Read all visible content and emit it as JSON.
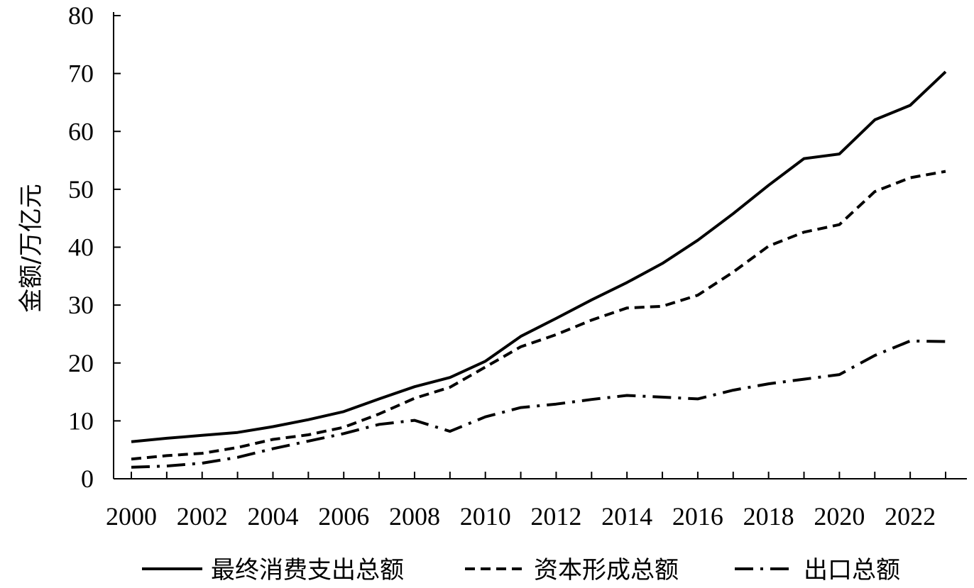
{
  "chart_data": {
    "type": "line",
    "title": "",
    "xlabel": "",
    "ylabel": "金额/万亿元",
    "xlim": [
      2000,
      2023
    ],
    "ylim": [
      0,
      80
    ],
    "yticks": [
      0,
      10,
      20,
      30,
      40,
      50,
      60,
      70,
      80
    ],
    "xticks": [
      2000,
      2002,
      2004,
      2006,
      2008,
      2010,
      2012,
      2014,
      2016,
      2018,
      2020,
      2022
    ],
    "grid": false,
    "legend_position": "bottom",
    "x": [
      2000,
      2001,
      2002,
      2003,
      2004,
      2005,
      2006,
      2007,
      2008,
      2009,
      2010,
      2011,
      2012,
      2013,
      2014,
      2015,
      2016,
      2017,
      2018,
      2019,
      2020,
      2021,
      2022,
      2023
    ],
    "series": [
      {
        "name": "最终消费支出总额",
        "style": "solid",
        "color": "#000000",
        "values": [
          6.4,
          7.0,
          7.5,
          8.0,
          9.0,
          10.2,
          11.6,
          13.8,
          15.9,
          17.5,
          20.3,
          24.6,
          27.7,
          30.9,
          33.9,
          37.2,
          41.2,
          45.8,
          50.7,
          55.3,
          56.1,
          62.0,
          64.5,
          70.3
        ]
      },
      {
        "name": "资本形成总额",
        "style": "dashed",
        "color": "#000000",
        "values": [
          3.4,
          4.0,
          4.4,
          5.4,
          6.8,
          7.6,
          8.9,
          11.2,
          13.9,
          15.8,
          19.3,
          22.8,
          24.9,
          27.4,
          29.5,
          29.8,
          31.7,
          35.7,
          40.2,
          42.6,
          43.9,
          49.6,
          52.0,
          53.1
        ]
      },
      {
        "name": "出口总额",
        "style": "dashdot",
        "color": "#000000",
        "values": [
          2.0,
          2.2,
          2.7,
          3.7,
          5.2,
          6.5,
          7.8,
          9.4,
          10.1,
          8.2,
          10.7,
          12.3,
          12.9,
          13.7,
          14.4,
          14.1,
          13.8,
          15.3,
          16.4,
          17.2,
          18.0,
          21.3,
          23.8,
          23.7
        ]
      }
    ]
  }
}
